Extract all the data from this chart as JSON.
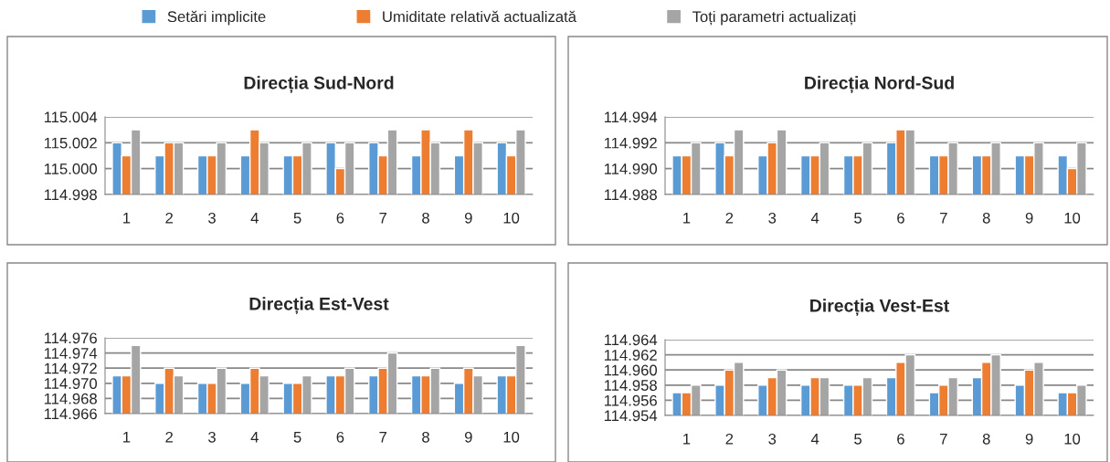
{
  "chart_data": [
    {
      "type": "bar",
      "title": "Direcția Sud-Nord",
      "categories": [
        "1",
        "2",
        "3",
        "4",
        "5",
        "6",
        "7",
        "8",
        "9",
        "10"
      ],
      "ylim": [
        114.998,
        115.004
      ],
      "yticks": [
        {
          "value": 114.998,
          "label": "114.998"
        },
        {
          "value": 115.0,
          "label": "115.000"
        },
        {
          "value": 115.002,
          "label": "115.002"
        },
        {
          "value": 115.004,
          "label": "115.004"
        }
      ],
      "grid": "y",
      "legend": "top",
      "series": [
        {
          "name": "Setări implicite",
          "color": "#5b9bd5",
          "values": [
            115.002,
            115.001,
            115.001,
            115.001,
            115.001,
            115.002,
            115.002,
            115.001,
            115.001,
            115.002
          ]
        },
        {
          "name": "Umiditate relativă actualizată",
          "color": "#ed7d31",
          "values": [
            115.001,
            115.002,
            115.001,
            115.003,
            115.001,
            115.0,
            115.001,
            115.003,
            115.003,
            115.001
          ]
        },
        {
          "name": "Toți parametri actualizați",
          "color": "#a5a5a5",
          "values": [
            115.003,
            115.002,
            115.002,
            115.002,
            115.002,
            115.002,
            115.003,
            115.002,
            115.002,
            115.003
          ]
        }
      ]
    },
    {
      "type": "bar",
      "title": "Direcția Nord-Sud",
      "categories": [
        "1",
        "2",
        "3",
        "4",
        "5",
        "6",
        "7",
        "8",
        "9",
        "10"
      ],
      "ylim": [
        114.988,
        114.994
      ],
      "yticks": [
        {
          "value": 114.988,
          "label": "114.988"
        },
        {
          "value": 114.99,
          "label": "114.990"
        },
        {
          "value": 114.992,
          "label": "114.992"
        },
        {
          "value": 114.994,
          "label": "114.994"
        }
      ],
      "grid": "y",
      "series": [
        {
          "color": "#5b9bd5",
          "values": [
            114.991,
            114.992,
            114.991,
            114.991,
            114.991,
            114.992,
            114.991,
            114.991,
            114.991,
            114.991
          ]
        },
        {
          "color": "#ed7d31",
          "values": [
            114.991,
            114.991,
            114.992,
            114.991,
            114.991,
            114.993,
            114.991,
            114.991,
            114.991,
            114.99
          ]
        },
        {
          "color": "#a5a5a5",
          "values": [
            114.992,
            114.993,
            114.993,
            114.992,
            114.992,
            114.993,
            114.992,
            114.992,
            114.992,
            114.992
          ]
        }
      ]
    },
    {
      "type": "bar",
      "title": "Direcția Est-Vest",
      "categories": [
        "1",
        "2",
        "3",
        "4",
        "5",
        "6",
        "7",
        "8",
        "9",
        "10"
      ],
      "ylim": [
        114.966,
        114.976
      ],
      "yticks": [
        {
          "value": 114.966,
          "label": "114.966"
        },
        {
          "value": 114.968,
          "label": "114.968"
        },
        {
          "value": 114.97,
          "label": "114.970"
        },
        {
          "value": 114.972,
          "label": "114.972"
        },
        {
          "value": 114.974,
          "label": "114.974"
        },
        {
          "value": 114.976,
          "label": "114.976"
        }
      ],
      "grid": "y",
      "series": [
        {
          "color": "#5b9bd5",
          "values": [
            114.971,
            114.97,
            114.97,
            114.97,
            114.97,
            114.971,
            114.971,
            114.971,
            114.97,
            114.971
          ]
        },
        {
          "color": "#ed7d31",
          "values": [
            114.971,
            114.972,
            114.97,
            114.972,
            114.97,
            114.971,
            114.972,
            114.971,
            114.972,
            114.971
          ]
        },
        {
          "color": "#a5a5a5",
          "values": [
            114.975,
            114.971,
            114.972,
            114.971,
            114.971,
            114.972,
            114.974,
            114.972,
            114.971,
            114.975
          ]
        }
      ]
    },
    {
      "type": "bar",
      "title": "Direcția Vest-Est",
      "categories": [
        "1",
        "2",
        "3",
        "4",
        "5",
        "6",
        "7",
        "8",
        "9",
        "10"
      ],
      "ylim": [
        114.954,
        114.964
      ],
      "yticks": [
        {
          "value": 114.954,
          "label": "114.954"
        },
        {
          "value": 114.956,
          "label": "114.956"
        },
        {
          "value": 114.958,
          "label": "114.958"
        },
        {
          "value": 114.96,
          "label": "114.960"
        },
        {
          "value": 114.962,
          "label": "114.962"
        },
        {
          "value": 114.964,
          "label": "114.964"
        }
      ],
      "grid": "y",
      "series": [
        {
          "color": "#5b9bd5",
          "values": [
            114.957,
            114.958,
            114.958,
            114.958,
            114.958,
            114.959,
            114.957,
            114.959,
            114.958,
            114.957
          ]
        },
        {
          "color": "#ed7d31",
          "values": [
            114.957,
            114.96,
            114.959,
            114.959,
            114.958,
            114.961,
            114.958,
            114.961,
            114.96,
            114.957
          ]
        },
        {
          "color": "#a5a5a5",
          "values": [
            114.958,
            114.961,
            114.96,
            114.959,
            114.959,
            114.962,
            114.959,
            114.962,
            114.961,
            114.958
          ]
        }
      ]
    }
  ]
}
